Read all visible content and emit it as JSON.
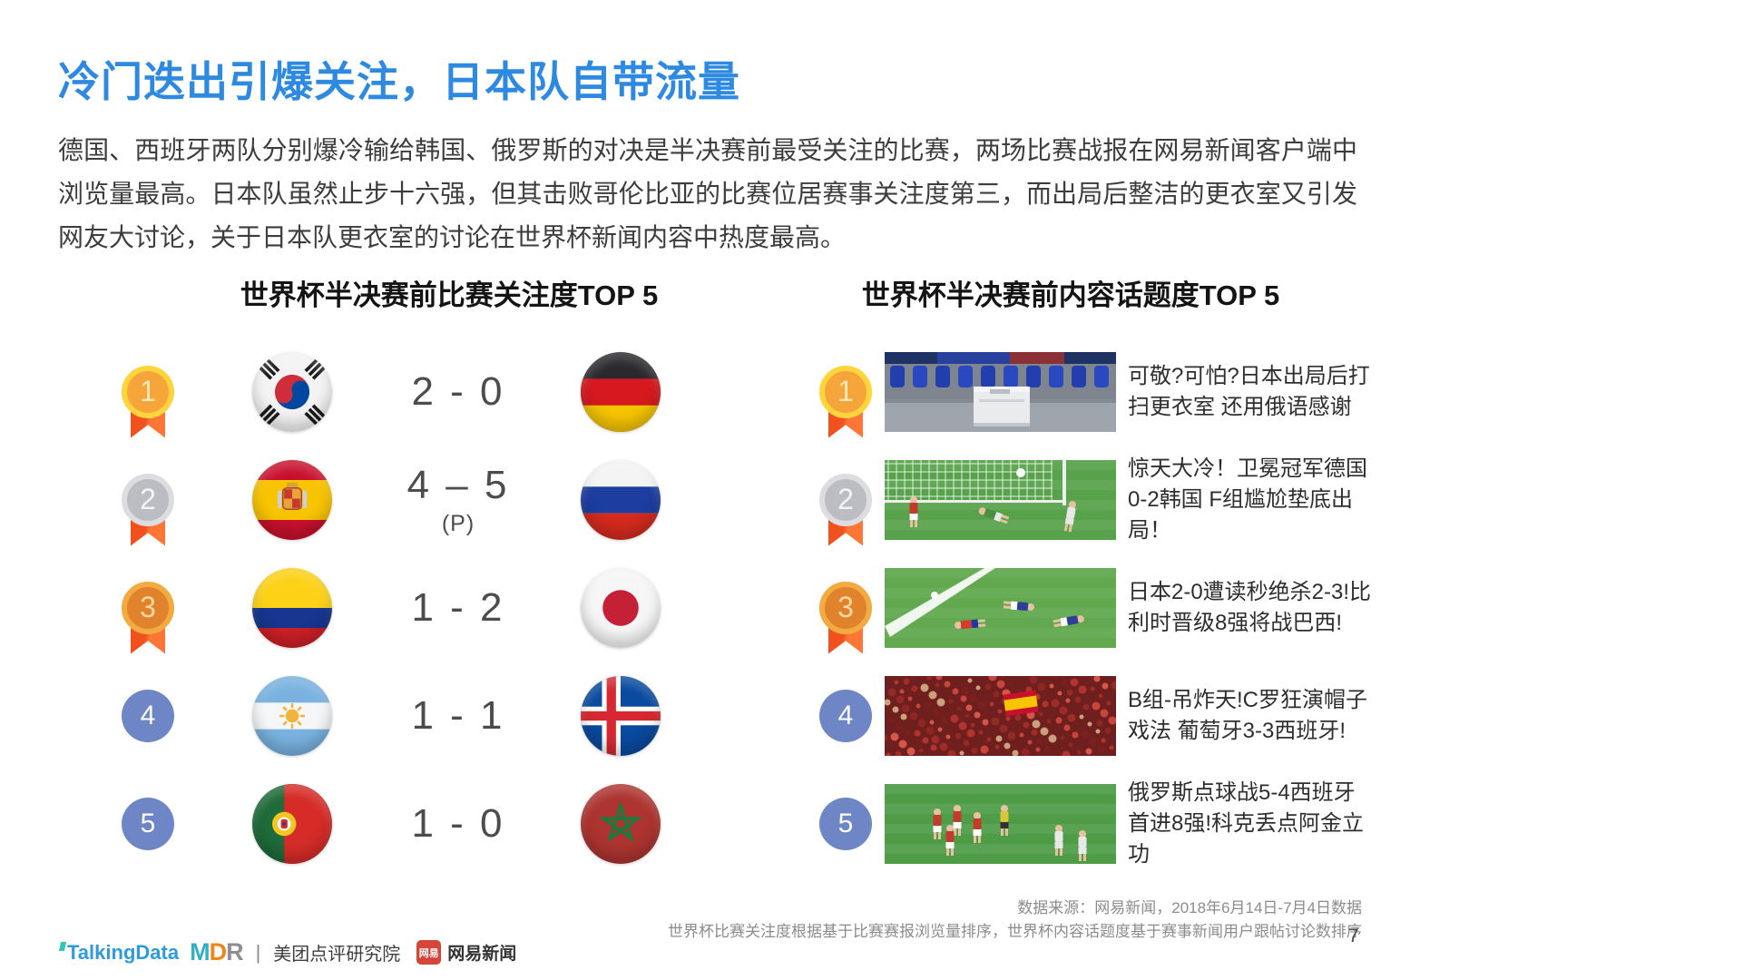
{
  "page": {
    "title": "冷门迭出引爆关注，日本队自带流量",
    "paragraph": "德国、西班牙两队分别爆冷输给韩国、俄罗斯的对决是半决赛前最受关注的比赛，两场比赛战报在网易新闻客户端中浏览量最高。日本队虽然止步十六强，但其击败哥伦比亚的比赛位居赛事关注度第三，而出局后整洁的更衣室又引发网友大讨论，关于日本队更衣室的讨论在世界杯新闻内容中热度最高。",
    "page_number": "7"
  },
  "panels": {
    "left": {
      "title": "世界杯半决赛前比赛关注度TOP 5",
      "rows": [
        {
          "rank": "1",
          "medal": "gold",
          "home_flag": "south-korea",
          "score": "2 - 0",
          "penalty_note": "",
          "away_flag": "germany"
        },
        {
          "rank": "2",
          "medal": "silver",
          "home_flag": "spain",
          "score": "4 – 5",
          "penalty_note": "(P)",
          "away_flag": "russia"
        },
        {
          "rank": "3",
          "medal": "bronze",
          "home_flag": "colombia",
          "score": "1 - 2",
          "penalty_note": "",
          "away_flag": "japan"
        },
        {
          "rank": "4",
          "medal": "plain",
          "home_flag": "argentina",
          "score": "1 - 1",
          "penalty_note": "",
          "away_flag": "iceland"
        },
        {
          "rank": "5",
          "medal": "plain",
          "home_flag": "portugal",
          "score": "1 - 0",
          "penalty_note": "",
          "away_flag": "morocco"
        }
      ]
    },
    "right": {
      "title": "世界杯半决赛前内容话题度TOP 5",
      "rows": [
        {
          "rank": "1",
          "medal": "gold",
          "image": "locker-room",
          "headline": "可敬?可怕?日本出局后打扫更衣室 还用俄语感谢"
        },
        {
          "rank": "2",
          "medal": "silver",
          "image": "goal-save",
          "headline": "惊天大冷！卫冕冠军德国0-2韩国 F组尴尬垫底出局！"
        },
        {
          "rank": "3",
          "medal": "bronze",
          "image": "players-down",
          "headline": "日本2-0遭读秒绝杀2-3!比利时晋级8强将战巴西!"
        },
        {
          "rank": "4",
          "medal": "plain",
          "image": "red-crowd",
          "headline": "B组-吊炸天!C罗狂演帽子戏法 葡萄牙3-3西班牙!"
        },
        {
          "rank": "5",
          "medal": "plain",
          "image": "celebration",
          "headline": "俄罗斯点球战5-4西班牙首进8强!科克丢点阿金立功"
        }
      ]
    }
  },
  "footnote": {
    "line1": "数据来源：网易新闻，2018年6月14日-7月4日数据",
    "line2": "世界杯比赛关注度根据基于比赛赛报浏览量排序，世界杯内容话题度基于赛事新闻用户跟帖讨论数排序"
  },
  "footer": {
    "talkingdata": "TalkingData",
    "mdr_m": "M",
    "mdr_d": "D",
    "mdr_r": "R",
    "divider": "|",
    "meituan_label": "美团点评研究院",
    "netease_badge": "网易",
    "netease_label": "网易新闻"
  },
  "colors": {
    "accent_blue": "#2e8ae0",
    "medal_gold": "#f6a53b",
    "medal_silver": "#bcbdc3",
    "medal_bronze": "#e1832c",
    "rank_blue": "#6e86c5",
    "ribbon_orange": "#f1511e",
    "footnote_gray": "#8c8c8c"
  }
}
